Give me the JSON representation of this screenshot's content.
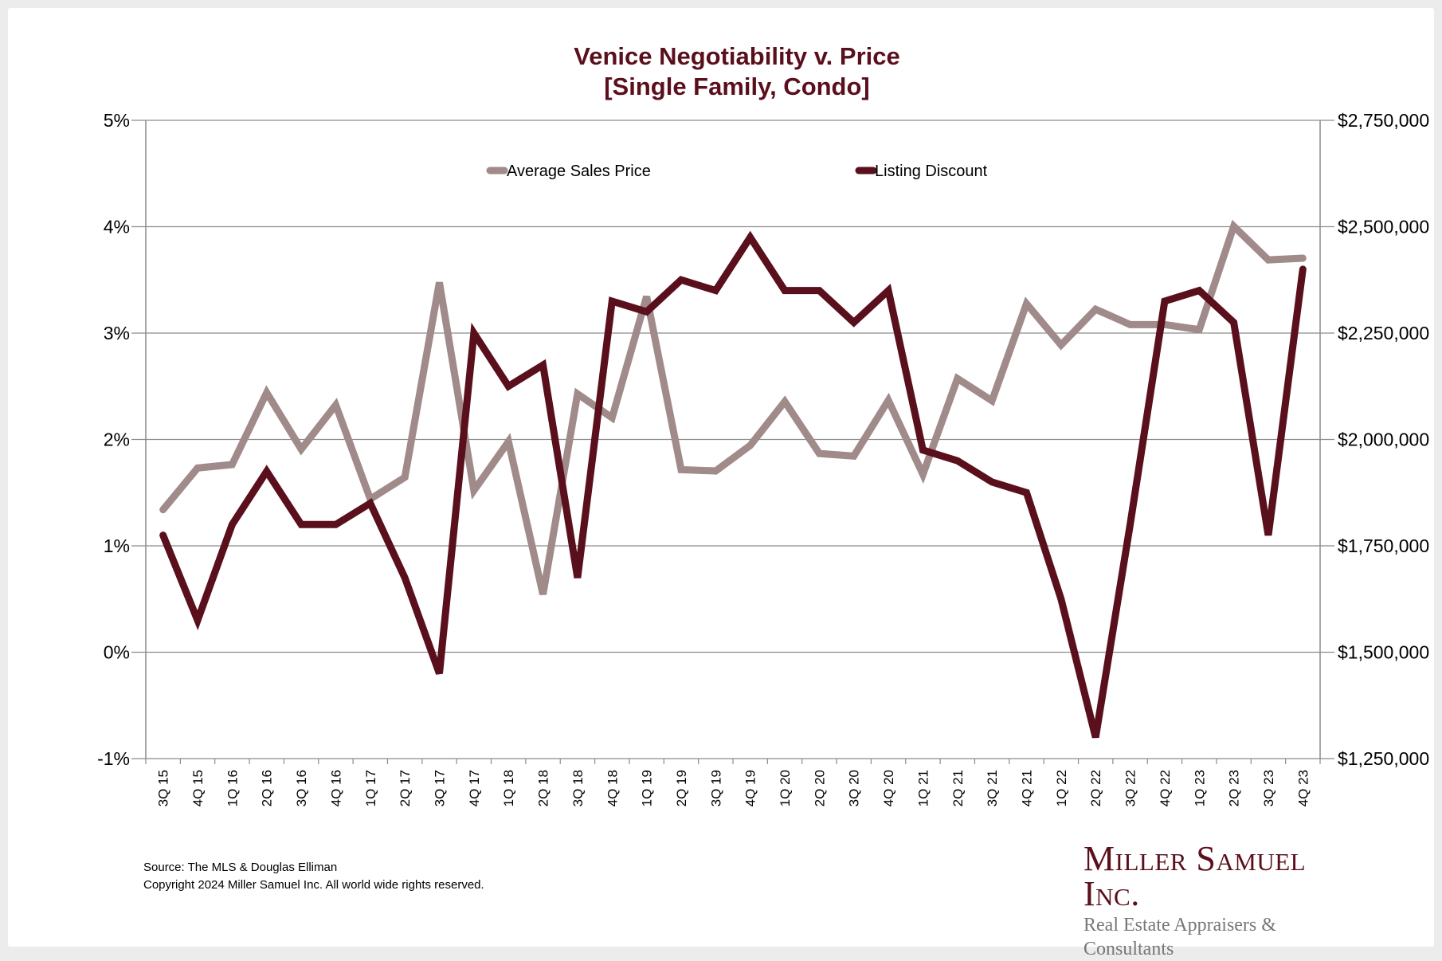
{
  "colors": {
    "background": "#ececec",
    "title": "#5a0f1c",
    "average_sales_price": "#a08a8a",
    "listing_discount": "#5a0f1c",
    "gridline": "#8c8c8c"
  },
  "title_line1": "Venice Negotiability v. Price",
  "title_line2": "[Single Family, Condo]",
  "footer": {
    "source": "Source: The MLS & Douglas Elliman",
    "copyright": "Copyright 2024 Miller Samuel Inc.  All world wide rights reserved."
  },
  "logo": {
    "name": "Miller Samuel Inc.",
    "tagline": "Real Estate Appraisers & Consultants"
  },
  "chart_data": {
    "type": "line",
    "title": "Venice Negotiability v. Price [Single Family, Condo]",
    "xlabel": "",
    "ylabel": "",
    "y2label": "",
    "grid": true,
    "legend_position": "top-center",
    "ylim": [
      -1,
      5
    ],
    "y_ticks": [
      "5%",
      "4%",
      "3%",
      "2%",
      "1%",
      "0%",
      "-1%"
    ],
    "y2lim": [
      1250000,
      2750000
    ],
    "y2_ticks": [
      "$2,750,000",
      "$2,500,000",
      "$2,250,000",
      "$2,000,000",
      "$1,750,000",
      "$1,500,000",
      "$1,250,000"
    ],
    "categories": [
      "3Q 15",
      "4Q 15",
      "1Q 16",
      "2Q 16",
      "3Q 16",
      "4Q 16",
      "1Q 17",
      "2Q 17",
      "3Q 17",
      "4Q 17",
      "1Q 18",
      "2Q 18",
      "3Q 18",
      "4Q 18",
      "1Q 19",
      "2Q 19",
      "3Q 19",
      "4Q 19",
      "1Q 20",
      "2Q 20",
      "3Q 20",
      "4Q 20",
      "1Q 21",
      "2Q 21",
      "3Q 21",
      "4Q 21",
      "1Q 22",
      "2Q 22",
      "3Q 22",
      "4Q 22",
      "1Q 23",
      "2Q 23",
      "3Q 23",
      "4Q 23"
    ],
    "series": [
      {
        "name": "Average Sales Price",
        "axis": "right",
        "values": [
          1835000,
          1933000,
          1941000,
          2110000,
          1977000,
          2081000,
          1860000,
          1911000,
          2369000,
          1880000,
          1995000,
          1636000,
          2107000,
          2051000,
          2336000,
          1929000,
          1926000,
          1986000,
          2089000,
          1967000,
          1961000,
          2092000,
          1918000,
          2143000,
          2091000,
          2319000,
          2222000,
          2306000,
          2270000,
          2270000,
          2258000,
          2501000,
          2422000,
          2426000
        ]
      },
      {
        "name": "Listing Discount",
        "axis": "left",
        "values": [
          1.1,
          0.3,
          1.2,
          1.7,
          1.2,
          1.2,
          1.4,
          0.7,
          -0.2,
          3.0,
          2.5,
          2.7,
          0.7,
          3.3,
          3.2,
          3.5,
          3.4,
          3.9,
          3.4,
          3.4,
          3.1,
          3.4,
          1.9,
          1.8,
          1.6,
          1.5,
          0.5,
          -0.8,
          1.2,
          3.3,
          3.4,
          3.1,
          1.1,
          3.6
        ]
      }
    ]
  }
}
